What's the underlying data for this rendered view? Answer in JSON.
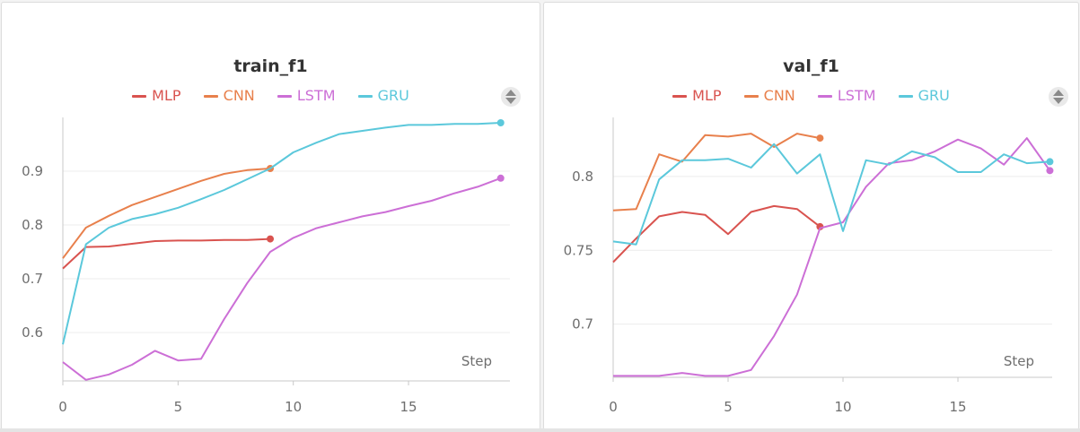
{
  "chart_data": [
    {
      "type": "line",
      "title": "train_f1",
      "xlabel": "Step",
      "ylabel": "",
      "xlim": [
        0,
        19.4
      ],
      "ylim": [
        0.51,
        1.0
      ],
      "xticks": [
        0,
        5,
        10,
        15
      ],
      "yticks": [
        0.6,
        0.7,
        0.8,
        0.9
      ],
      "grid": true,
      "legend": "top-center",
      "series": [
        {
          "name": "MLP",
          "color": "#d9534f",
          "x": [
            0,
            1,
            2,
            3,
            4,
            5,
            6,
            7,
            8,
            9
          ],
          "y": [
            0.719,
            0.759,
            0.76,
            0.765,
            0.77,
            0.771,
            0.771,
            0.772,
            0.772,
            0.774
          ]
        },
        {
          "name": "CNN",
          "color": "#e8804c",
          "x": [
            0,
            1,
            2,
            3,
            4,
            5,
            6,
            7,
            8,
            9
          ],
          "y": [
            0.738,
            0.795,
            0.817,
            0.837,
            0.852,
            0.867,
            0.882,
            0.895,
            0.902,
            0.905
          ]
        },
        {
          "name": "LSTM",
          "color": "#cc6fd6",
          "x": [
            0,
            1,
            2,
            3,
            4,
            5,
            6,
            7,
            8,
            9,
            10,
            11,
            12,
            13,
            14,
            15,
            16,
            17,
            18,
            19
          ],
          "y": [
            0.545,
            0.512,
            0.522,
            0.54,
            0.566,
            0.548,
            0.551,
            0.625,
            0.692,
            0.75,
            0.776,
            0.794,
            0.805,
            0.816,
            0.824,
            0.835,
            0.845,
            0.859,
            0.871,
            0.887
          ]
        },
        {
          "name": "GRU",
          "color": "#5bc8db",
          "x": [
            0,
            1,
            2,
            3,
            4,
            5,
            6,
            7,
            8,
            9,
            10,
            11,
            12,
            13,
            14,
            15,
            16,
            17,
            18,
            19
          ],
          "y": [
            0.578,
            0.764,
            0.795,
            0.811,
            0.82,
            0.832,
            0.848,
            0.865,
            0.885,
            0.905,
            0.935,
            0.953,
            0.969,
            0.975,
            0.981,
            0.986,
            0.986,
            0.988,
            0.988,
            0.99
          ]
        }
      ]
    },
    {
      "type": "line",
      "title": "val_f1",
      "xlabel": "Step",
      "ylabel": "",
      "xlim": [
        0,
        19.1
      ],
      "ylim": [
        0.664,
        0.84
      ],
      "xticks": [
        0,
        5,
        10,
        15
      ],
      "yticks": [
        0.7,
        0.75,
        0.8
      ],
      "grid": true,
      "legend": "top-center",
      "series": [
        {
          "name": "MLP",
          "color": "#d9534f",
          "x": [
            0,
            1,
            2,
            3,
            4,
            5,
            6,
            7,
            8,
            9
          ],
          "y": [
            0.742,
            0.758,
            0.773,
            0.776,
            0.774,
            0.761,
            0.776,
            0.78,
            0.778,
            0.766
          ]
        },
        {
          "name": "CNN",
          "color": "#e8804c",
          "x": [
            0,
            1,
            2,
            3,
            4,
            5,
            6,
            7,
            8,
            9
          ],
          "y": [
            0.777,
            0.778,
            0.815,
            0.81,
            0.828,
            0.827,
            0.829,
            0.82,
            0.829,
            0.826
          ]
        },
        {
          "name": "LSTM",
          "color": "#cc6fd6",
          "x": [
            0,
            1,
            2,
            3,
            4,
            5,
            6,
            7,
            8,
            9,
            10,
            11,
            12,
            13,
            14,
            15,
            16,
            17,
            18,
            19
          ],
          "y": [
            0.665,
            0.665,
            0.665,
            0.667,
            0.665,
            0.665,
            0.669,
            0.692,
            0.72,
            0.765,
            0.769,
            0.793,
            0.809,
            0.811,
            0.817,
            0.825,
            0.819,
            0.808,
            0.826,
            0.804
          ]
        },
        {
          "name": "GRU",
          "color": "#5bc8db",
          "x": [
            0,
            1,
            2,
            3,
            4,
            5,
            6,
            7,
            8,
            9,
            10,
            11,
            12,
            13,
            14,
            15,
            16,
            17,
            18,
            19
          ],
          "y": [
            0.756,
            0.754,
            0.798,
            0.811,
            0.811,
            0.812,
            0.806,
            0.822,
            0.802,
            0.815,
            0.763,
            0.811,
            0.808,
            0.817,
            0.813,
            0.803,
            0.803,
            0.815,
            0.809,
            0.81
          ]
        }
      ]
    }
  ]
}
